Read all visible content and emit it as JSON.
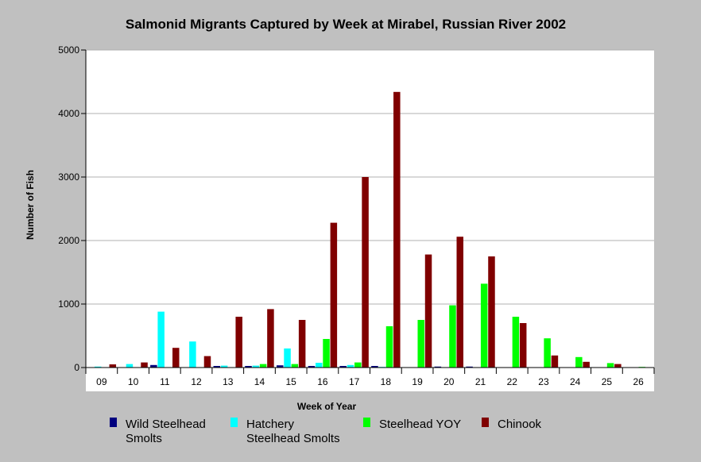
{
  "chart_data": {
    "type": "bar",
    "title": "Salmonid Migrants Captured by Week at Mirabel, Russian River 2002",
    "xlabel": "Week of Year",
    "ylabel": "Number of Fish",
    "ylim": [
      0,
      5000
    ],
    "yticks": [
      0,
      1000,
      2000,
      3000,
      4000,
      5000
    ],
    "grid": true,
    "legend_position": "bottom",
    "categories": [
      "09",
      "10",
      "11",
      "12",
      "13",
      "14",
      "15",
      "16",
      "17",
      "18",
      "19",
      "20",
      "21",
      "22",
      "23",
      "24",
      "25",
      "26"
    ],
    "series": [
      {
        "name": "Wild Steelhead Smolts",
        "legend_lines": [
          "Wild Steelhead",
          "Smolts"
        ],
        "color": "#00007f",
        "values": [
          5,
          5,
          40,
          5,
          25,
          25,
          35,
          25,
          25,
          25,
          5,
          15,
          15,
          0,
          0,
          0,
          0,
          0
        ]
      },
      {
        "name": "Hatchery Steelhead Smolts",
        "legend_lines": [
          "Hatchery",
          "Steelhead Smolts"
        ],
        "color": "#00ffff",
        "values": [
          15,
          55,
          880,
          410,
          30,
          30,
          300,
          75,
          40,
          10,
          5,
          5,
          5,
          0,
          0,
          0,
          0,
          0
        ]
      },
      {
        "name": "Steelhead YOY",
        "legend_lines": [
          "Steelhead YOY"
        ],
        "color": "#00ff00",
        "values": [
          0,
          0,
          0,
          0,
          0,
          55,
          55,
          450,
          80,
          650,
          750,
          980,
          1320,
          800,
          460,
          165,
          70,
          10
        ]
      },
      {
        "name": "Chinook",
        "legend_lines": [
          "Chinook"
        ],
        "color": "#800000",
        "values": [
          50,
          80,
          310,
          180,
          800,
          920,
          750,
          2280,
          3000,
          4340,
          1780,
          2060,
          1750,
          700,
          190,
          90,
          55,
          5
        ]
      }
    ]
  }
}
